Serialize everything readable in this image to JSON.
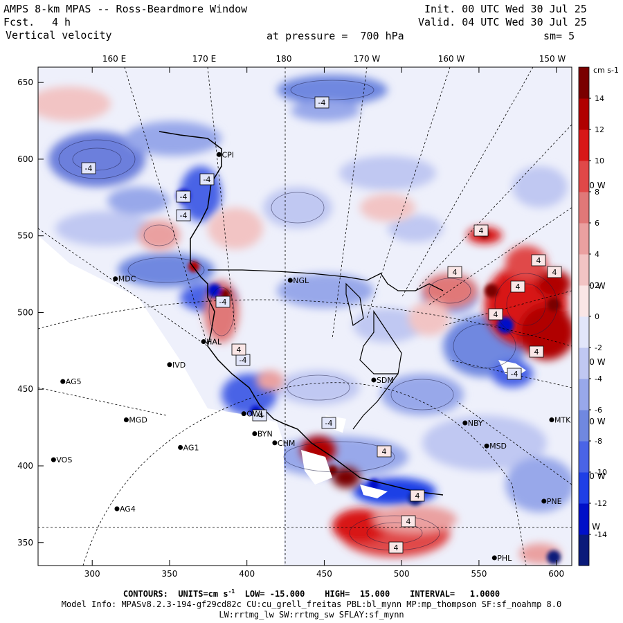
{
  "header": {
    "title": "AMPS 8-km MPAS -- Ross-Beardmore Window",
    "fcst_label": "Fcst.",
    "fcst_value": "4 h",
    "field": "Vertical velocity",
    "init": "Init. 00 UTC Wed 30 Jul 25",
    "valid": "Valid. 04 UTC Wed 30 Jul 25",
    "pressure": "at pressure =  700 hPa",
    "smoothing": "sm= 5"
  },
  "map": {
    "x_ticks": [
      300,
      350,
      400,
      450,
      500,
      550,
      600
    ],
    "y_ticks": [
      350,
      400,
      450,
      500,
      550,
      600,
      650
    ],
    "x_range": [
      265,
      610
    ],
    "y_range": [
      335,
      660
    ],
    "lon_labels_top": [
      "160 E",
      "170 E",
      "180",
      "170 W",
      "160 W",
      "150 W"
    ],
    "lon_labels_right": [
      "140 W",
      "130 W",
      "120 W",
      "110 W",
      "100 W",
      "90 W"
    ],
    "stations": [
      {
        "name": "MDC",
        "x": 315,
        "y": 522
      },
      {
        "name": "NGL",
        "x": 428,
        "y": 521
      },
      {
        "name": "CPI",
        "x": 382,
        "y": 603
      },
      {
        "name": "HAL",
        "x": 372,
        "y": 481
      },
      {
        "name": "IVD",
        "x": 350,
        "y": 466
      },
      {
        "name": "AG5",
        "x": 281,
        "y": 455
      },
      {
        "name": "SDM",
        "x": 482,
        "y": 456
      },
      {
        "name": "MGD",
        "x": 322,
        "y": 430
      },
      {
        "name": "OWL",
        "x": 398,
        "y": 434
      },
      {
        "name": "BYN",
        "x": 405,
        "y": 421
      },
      {
        "name": "CHM",
        "x": 418,
        "y": 415
      },
      {
        "name": "AG1",
        "x": 357,
        "y": 412
      },
      {
        "name": "VOS",
        "x": 275,
        "y": 404
      },
      {
        "name": "AG4",
        "x": 316,
        "y": 372
      },
      {
        "name": "NBY",
        "x": 541,
        "y": 428
      },
      {
        "name": "MSD",
        "x": 555,
        "y": 413
      },
      {
        "name": "MTK",
        "x": 597,
        "y": 430
      },
      {
        "name": "PNE",
        "x": 592,
        "y": 377
      },
      {
        "name": "PHL",
        "x": 560,
        "y": 340
      }
    ],
    "contour_labels": [
      "-4",
      "-4",
      "-4",
      "-4",
      "-4",
      "-4",
      "-4",
      "-4",
      "-4",
      "-4",
      "4",
      "4",
      "4",
      "4",
      "4",
      "4",
      "4",
      "4",
      "4",
      "4",
      "4",
      "4"
    ]
  },
  "colorbar": {
    "units": "cm s-1",
    "labels": [
      "14",
      "12",
      "10",
      "8",
      "6",
      "4",
      "2",
      "0",
      "-2",
      "-4",
      "-6",
      "-8",
      "-10",
      "-12",
      "-14"
    ],
    "range": [
      -16,
      16
    ],
    "colors": [
      "#0a1a7a",
      "#0010c8",
      "#1f3fe6",
      "#4a64e6",
      "#7088e0",
      "#98a8ea",
      "#c0c8f2",
      "#e2e6fa",
      "#fae6e6",
      "#f2c4c4",
      "#eaa0a0",
      "#e07878",
      "#e04848",
      "#d81818",
      "#b00000",
      "#7a0000"
    ]
  },
  "footer": {
    "contours_label": "CONTOURS:",
    "units_label": "UNITS=cm s",
    "units_exp": "-1",
    "low": "LOW= -15.000",
    "high": "HIGH=  15.000",
    "interval": "INTERVAL=   1.0000",
    "model_info_1": "Model Info: MPASv8.2.3-194-gf29cd82c CU:cu_grell_freitas PBL:bl_mynn MP:mp_thompson SF:sf_noahmp 8.0",
    "model_info_2": "LW:rrtmg_lw SW:rrtmg_sw SFLAY:sf_mynn"
  }
}
